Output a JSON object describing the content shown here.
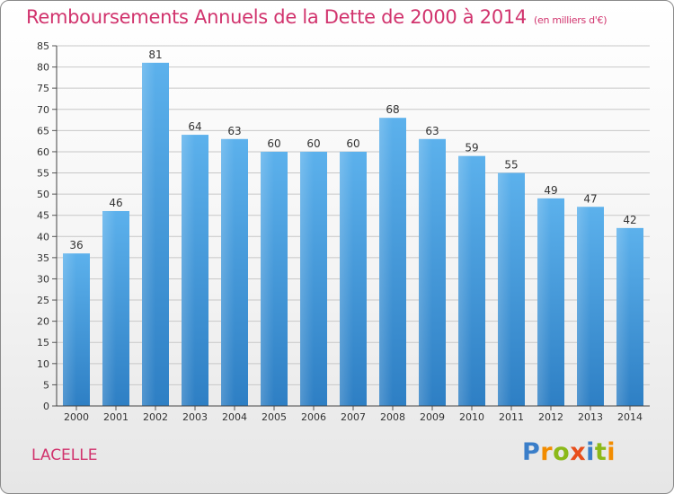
{
  "title": "Remboursements Annuels de la Dette de 2000 à 2014",
  "subtitle": "(en milliers d'€)",
  "commune": "LACELLE",
  "brand": {
    "letters": [
      "P",
      "r",
      "o",
      "x",
      "i",
      "t",
      "i"
    ],
    "colors": [
      "#3a7ec9",
      "#f28c00",
      "#8bb919",
      "#e84e1b",
      "#3a7ec9",
      "#8bb919",
      "#f28c00"
    ]
  },
  "colors": {
    "title": "#d1336d",
    "bar_top": "#5cb1ec",
    "bar_bottom": "#2e7fc4",
    "grid": "#c8c8c8"
  },
  "chart_data": {
    "type": "bar",
    "categories": [
      "2000",
      "2001",
      "2002",
      "2003",
      "2004",
      "2005",
      "2006",
      "2007",
      "2008",
      "2009",
      "2010",
      "2011",
      "2012",
      "2013",
      "2014"
    ],
    "values": [
      36,
      46,
      81,
      64,
      63,
      60,
      60,
      60,
      68,
      63,
      59,
      55,
      49,
      47,
      42
    ],
    "ylim": [
      0,
      85
    ],
    "yticks": [
      0,
      5,
      10,
      15,
      20,
      25,
      30,
      35,
      40,
      45,
      50,
      55,
      60,
      65,
      70,
      75,
      80,
      85
    ],
    "grid": true,
    "data_labels": true
  }
}
